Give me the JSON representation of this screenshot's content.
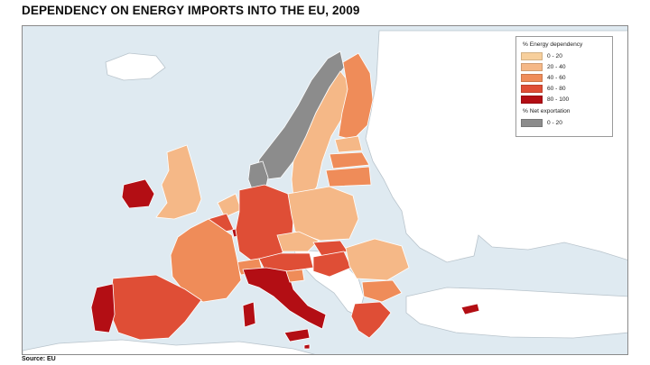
{
  "title": "DEPENDENCY ON ENERGY IMPORTS INTO THE EU, 2009",
  "source": "Source: EU",
  "colors": {
    "sea": "#dfeaf1",
    "non_eu_land": "#ffffff",
    "c0_20": "#f7cf9c",
    "c20_40": "#f5b887",
    "c40_60": "#ef8c59",
    "c60_80": "#df4e36",
    "c80_100": "#b30e14",
    "net_exporter": "#8c8c8c"
  },
  "legend": {
    "heading": "% Energy dependency",
    "classes": [
      {
        "label": "0 - 20",
        "color": "#f7cf9c"
      },
      {
        "label": "20 - 40",
        "color": "#f5b887"
      },
      {
        "label": "40 - 60",
        "color": "#ef8c59"
      },
      {
        "label": "60 - 80",
        "color": "#df4e36"
      },
      {
        "label": "80 - 100",
        "color": "#b30e14"
      }
    ],
    "export_heading": "% Net exportation",
    "export_classes": [
      {
        "label": "0 - 20",
        "color": "#8c8c8c"
      }
    ]
  },
  "countries": {
    "norway": "net_exporter",
    "sweden": "20-40",
    "finland": "40-60",
    "estonia": "20-40",
    "latvia": "40-60",
    "lithuania": "40-60",
    "denmark": "net_exporter",
    "uk": "20-40",
    "ireland": "80-100",
    "netherlands": "20-40",
    "belgium": "60-80",
    "luxembourg": "80-100",
    "germany": "60-80",
    "poland": "20-40",
    "czech_republic": "20-40",
    "slovakia": "60-80",
    "hungary": "60-80",
    "austria": "60-80",
    "switzerland": "40-60",
    "france": "40-60",
    "spain": "60-80",
    "portugal": "80-100",
    "italy": "80-100",
    "slovenia": "40-60",
    "romania": "20-40",
    "bulgaria": "40-60",
    "greece": "60-80",
    "cyprus": "80-100",
    "malta": "80-100"
  }
}
